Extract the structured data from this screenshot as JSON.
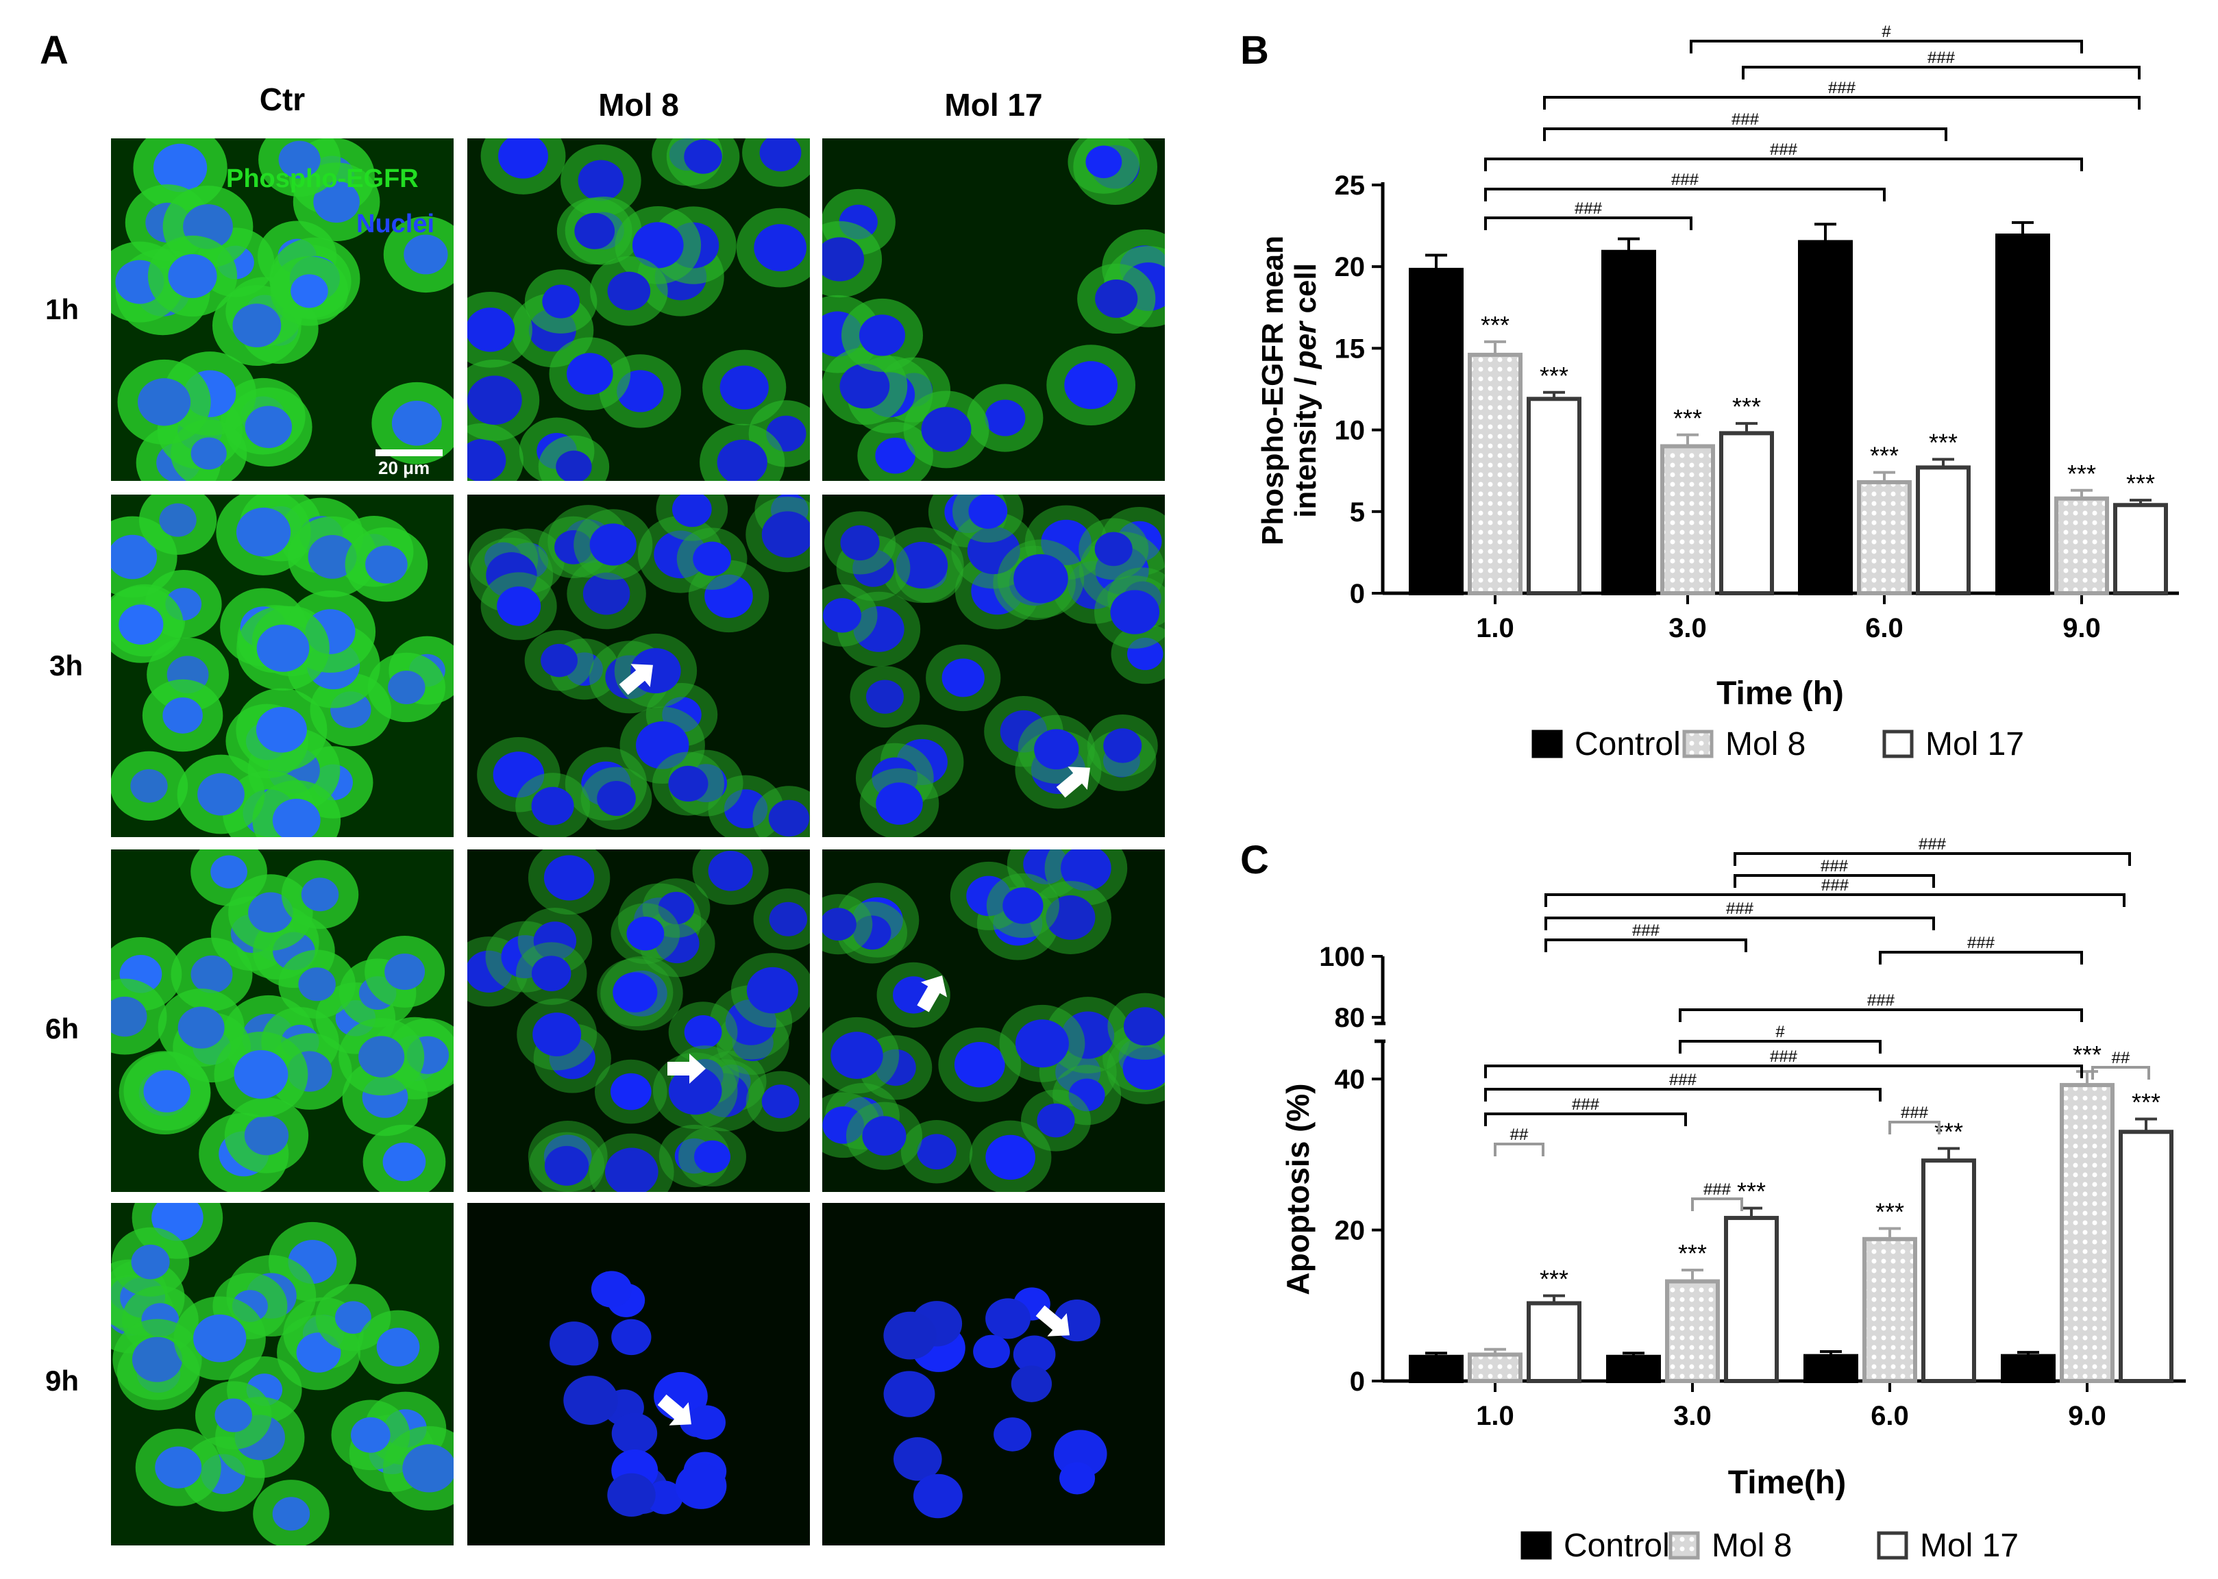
{
  "panels": {
    "a": "A",
    "b": "B",
    "c": "C"
  },
  "micrograph": {
    "columns": [
      "Ctr",
      "Mol 8",
      "Mol 17"
    ],
    "rows": [
      "1h",
      "3h",
      "6h",
      "9h"
    ],
    "stain_labels": {
      "phospho": "Phospho-EGFR",
      "nuclei": "Nuclei"
    },
    "scale_bar": "20 μm",
    "colors": {
      "phospho": "#22cc22",
      "nuclei": "#2244ff"
    },
    "arrow_icon": "white-arrow-icon",
    "arrows": [
      [
        1,
        1
      ],
      [
        1,
        2
      ],
      [
        2,
        1
      ],
      [
        2,
        2
      ],
      [
        3,
        1
      ],
      [
        3,
        2
      ]
    ]
  },
  "chart_data": [
    {
      "type": "bar",
      "ylabel_line1": "Phospho-EGFR mean",
      "ylabel_line2_a": "intensity / ",
      "ylabel_line2_b": "per",
      "ylabel_line2_c": " cell",
      "xlabel": "Time (h)",
      "categories": [
        "1.0",
        "3.0",
        "6.0",
        "9.0"
      ],
      "ylim": [
        0,
        25
      ],
      "yticks": [
        "0",
        "5",
        "10",
        "15",
        "20",
        "25"
      ],
      "series": [
        {
          "name": "Control",
          "values": [
            19.8,
            20.9,
            21.5,
            21.9
          ],
          "errors": [
            0.9,
            0.8,
            1.1,
            0.8
          ],
          "sig": [
            "",
            "",
            "",
            ""
          ]
        },
        {
          "name": "Mol 8",
          "values": [
            14.6,
            9.0,
            6.8,
            5.8
          ],
          "errors": [
            0.8,
            0.7,
            0.6,
            0.5
          ],
          "sig": [
            "***",
            "***",
            "***",
            "***"
          ]
        },
        {
          "name": "Mol 17",
          "values": [
            11.9,
            9.8,
            7.7,
            5.4
          ],
          "errors": [
            0.4,
            0.6,
            0.5,
            0.3
          ],
          "sig": [
            "***",
            "***",
            "***",
            "***"
          ]
        }
      ],
      "brackets": [
        "#",
        "###",
        "###",
        "###",
        "###",
        "###",
        "###"
      ],
      "legend": [
        "Control",
        "Mol 8",
        "Mol 17"
      ]
    },
    {
      "type": "bar",
      "ylabel": "Apoptosis (%)",
      "xlabel": "Time(h)",
      "categories": [
        "1.0",
        "3.0",
        "6.0",
        "9.0"
      ],
      "ylim": [
        0,
        100
      ],
      "axis_break": [
        45,
        78
      ],
      "yticks": [
        "0",
        "20",
        "40",
        "80",
        "100"
      ],
      "series": [
        {
          "name": "Control",
          "values": [
            3.2,
            3.2,
            3.3,
            3.3
          ],
          "errors": [
            0.5,
            0.5,
            0.6,
            0.5
          ],
          "sig": [
            "",
            "",
            "",
            ""
          ]
        },
        {
          "name": "Mol 8",
          "values": [
            3.5,
            13.2,
            18.8,
            39.2
          ],
          "errors": [
            0.7,
            1.5,
            1.4,
            1.8
          ],
          "sig": [
            "",
            "***",
            "***",
            "***"
          ]
        },
        {
          "name": "Mol 17",
          "values": [
            10.3,
            21.6,
            29.2,
            33.0
          ],
          "errors": [
            1.0,
            1.3,
            1.6,
            1.7
          ],
          "sig": [
            "***",
            "***",
            "***",
            "***"
          ]
        }
      ],
      "brackets": [
        "###",
        "###",
        "###",
        "###",
        "###",
        "###",
        "###",
        "###",
        "#",
        "###",
        "###",
        "###",
        "##",
        "###",
        "###",
        "##"
      ],
      "legend": [
        "Control",
        "Mol 8",
        "Mol 17"
      ]
    }
  ]
}
